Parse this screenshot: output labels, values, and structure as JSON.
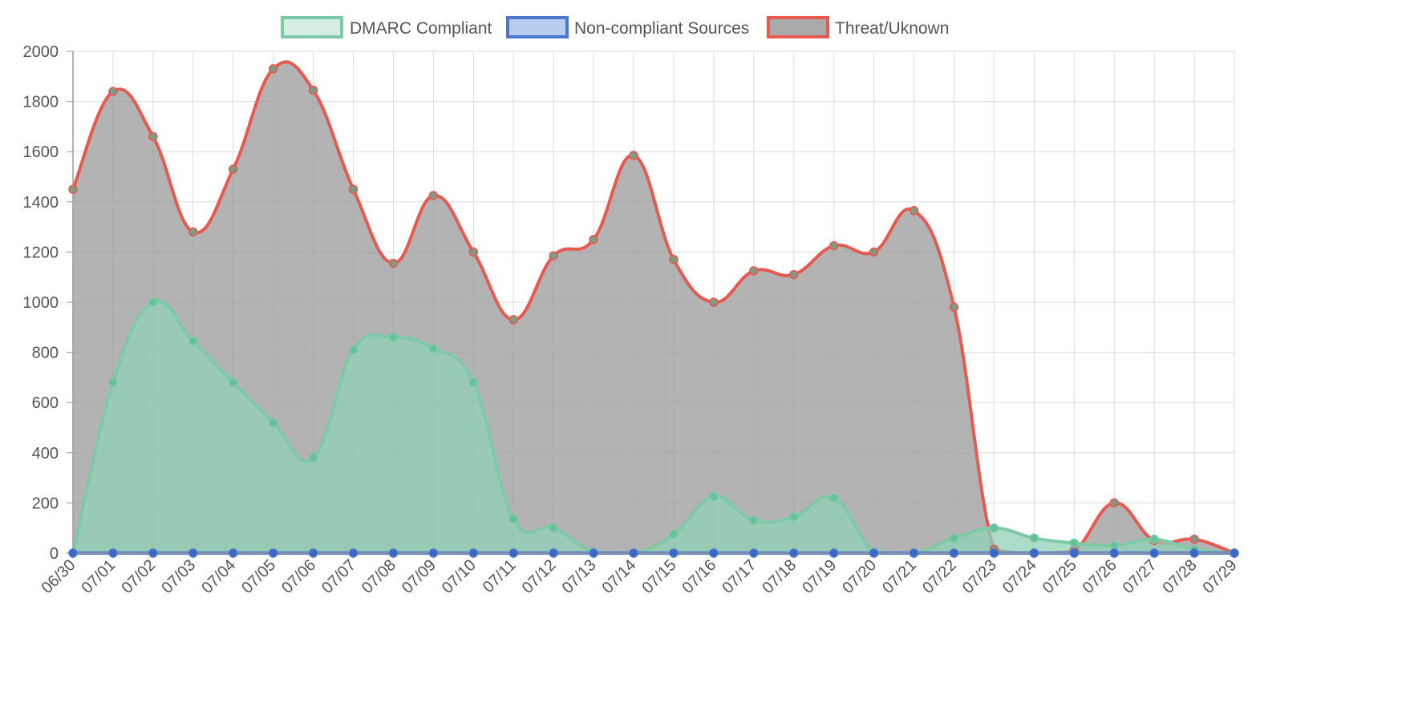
{
  "chart_data": {
    "type": "area",
    "title": "",
    "xlabel": "",
    "ylabel": "",
    "ylim": [
      0,
      2000
    ],
    "yticks": [
      "0",
      "200",
      "400",
      "600",
      "800",
      "1000",
      "1200",
      "1400",
      "1600",
      "1800",
      "2000"
    ],
    "grid": true,
    "legend_position": "top",
    "categories": [
      "06/30",
      "07/01",
      "07/02",
      "07/03",
      "07/04",
      "07/05",
      "07/06",
      "07/07",
      "07/08",
      "07/09",
      "07/10",
      "07/11",
      "07/12",
      "07/13",
      "07/14",
      "07/15",
      "07/16",
      "07/17",
      "07/18",
      "07/19",
      "07/20",
      "07/21",
      "07/22",
      "07/23",
      "07/24",
      "07/25",
      "07/26",
      "07/27",
      "07/28",
      "07/29"
    ],
    "series": [
      {
        "name": "Threat/Uknown",
        "border_color": "#e8594f",
        "fill_color": "#999999",
        "point_color": "#7f9a80",
        "values": [
          1450,
          1840,
          1660,
          1280,
          1530,
          1930,
          1845,
          1450,
          1155,
          1425,
          1200,
          930,
          1185,
          1250,
          1585,
          1170,
          1000,
          1125,
          1110,
          1225,
          1200,
          1365,
          980,
          15,
          0,
          10,
          200,
          50,
          55,
          0
        ]
      },
      {
        "name": "DMARC Compliant",
        "border_color": "#7ecaa7",
        "fill_color": "#8fd2b6",
        "point_color": "#63c297",
        "values": [
          0,
          680,
          1000,
          845,
          680,
          520,
          380,
          810,
          860,
          815,
          680,
          135,
          100,
          5,
          0,
          75,
          225,
          130,
          145,
          220,
          5,
          0,
          60,
          100,
          60,
          40,
          30,
          55,
          15,
          0
        ]
      },
      {
        "name": "Non-compliant Sources",
        "border_color": "#4a77d0",
        "fill_color": "#b3c8ee",
        "point_color": "#3a68c8",
        "values": [
          0,
          0,
          0,
          0,
          0,
          0,
          0,
          0,
          0,
          0,
          0,
          0,
          0,
          0,
          0,
          0,
          0,
          0,
          0,
          0,
          0,
          0,
          0,
          0,
          0,
          0,
          0,
          0,
          0,
          0
        ]
      }
    ],
    "legend": [
      {
        "label": "DMARC Compliant",
        "fill": "#d5efe2",
        "border": "#7ecaa7"
      },
      {
        "label": "Non-compliant Sources",
        "fill": "#b8cdf0",
        "border": "#4a77d0"
      },
      {
        "label": "Threat/Uknown",
        "fill": "#aaaaaa",
        "border": "#e8594f"
      }
    ]
  }
}
